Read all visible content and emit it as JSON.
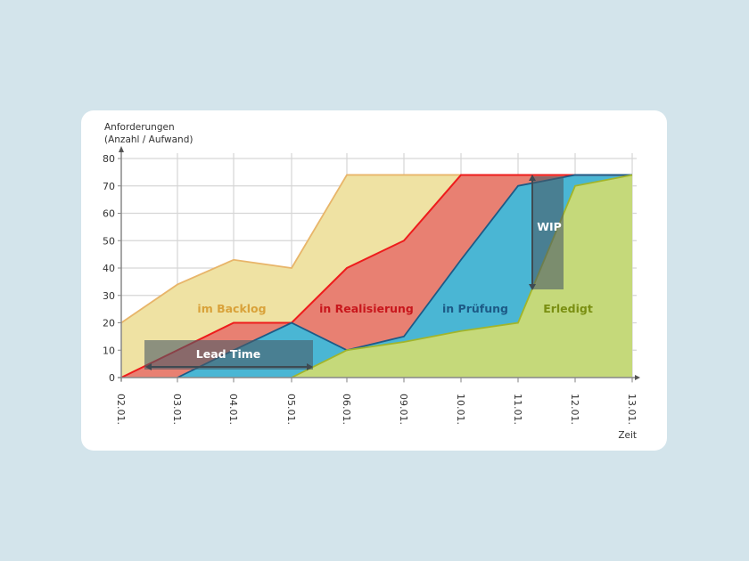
{
  "chart_data": {
    "type": "area",
    "subtype": "cumulative-flow-diagram",
    "title": "",
    "ylabel": "Anforderungen\n(Anzahl / Aufwand)",
    "ylabel_lines": [
      "Anforderungen",
      "(Anzahl / Aufwand)"
    ],
    "xlabel": "Zeit",
    "ylim": [
      0,
      80
    ],
    "yticks": [
      0,
      10,
      20,
      30,
      40,
      50,
      60,
      70,
      80
    ],
    "grid": true,
    "categories": [
      "02.01.",
      "03.01.",
      "04.01.",
      "05.01.",
      "06.01.",
      "09.01.",
      "10.01.",
      "11.01.",
      "12.01.",
      "13.01."
    ],
    "series": [
      {
        "name": "im Backlog",
        "fill": "#efe2a3",
        "line": "#e8b56a",
        "values": [
          20,
          34,
          43,
          40,
          74,
          74,
          74,
          74,
          74,
          74
        ]
      },
      {
        "name": "in Realisierung",
        "fill": "#e88072",
        "line": "#ee1c1c",
        "values": [
          0,
          10,
          20,
          20,
          40,
          50,
          74,
          74,
          74,
          74
        ]
      },
      {
        "name": "in Prüfung",
        "fill": "#4ab6d4",
        "line": "#1d5a86",
        "values": [
          null,
          0,
          10,
          20,
          10,
          15,
          43,
          70,
          74,
          74
        ]
      },
      {
        "name": "Erledigt",
        "fill": "#c5d97a",
        "line": "#a2b52a",
        "values": [
          null,
          null,
          null,
          0,
          10,
          13,
          17,
          20,
          70,
          74
        ]
      }
    ],
    "area_labels": [
      {
        "text": "im Backlog",
        "color": "#d9a23a"
      },
      {
        "text": "in Realisierung",
        "color": "#c8161c"
      },
      {
        "text": "in Prüfung",
        "color": "#1d5a86"
      },
      {
        "text": "Erledigt",
        "color": "#7a8f12"
      }
    ],
    "annotations": [
      {
        "text": "Lead Time",
        "type": "horizontal-arrow",
        "from_x": "02.01.",
        "to_x": "05.01.",
        "y": 3
      },
      {
        "text": "WIP",
        "type": "vertical-arrow",
        "x": "11.01.",
        "from_y": 74,
        "to_y": 32
      }
    ]
  }
}
